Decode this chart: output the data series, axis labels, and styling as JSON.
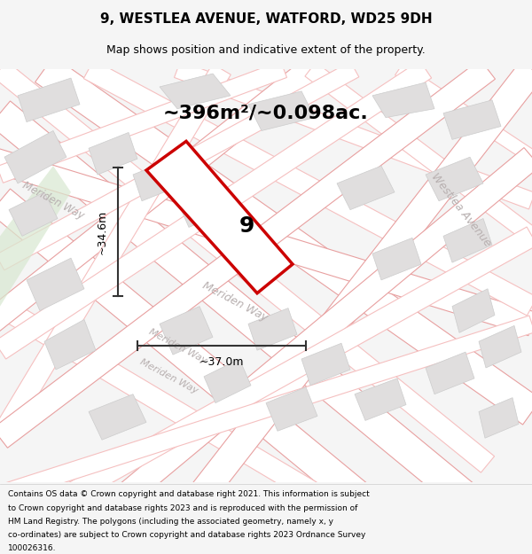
{
  "title_line1": "9, WESTLEA AVENUE, WATFORD, WD25 9DH",
  "title_line2": "Map shows position and indicative extent of the property.",
  "area_text": "~396m²/~0.098ac.",
  "dim_height": "~34.6m",
  "dim_width": "~37.0m",
  "property_number": "9",
  "footer_lines": [
    "Contains OS data © Crown copyright and database right 2021. This information is subject",
    "to Crown copyright and database rights 2023 and is reproduced with the permission of",
    "HM Land Registry. The polygons (including the associated geometry, namely x, y",
    "co-ordinates) are subject to Crown copyright and database rights 2023 Ordnance Survey",
    "100026316."
  ],
  "bg_color": "#f0eeee",
  "road_color_light": "#f5c0c0",
  "road_color_dark": "#e8a0a0",
  "property_outline": "#cc0000",
  "dim_line_color": "#333333",
  "road_label_color": "#b8b0b0",
  "block_color": "#e0dede",
  "white": "#ffffff",
  "green_area": "#d8e8d0"
}
